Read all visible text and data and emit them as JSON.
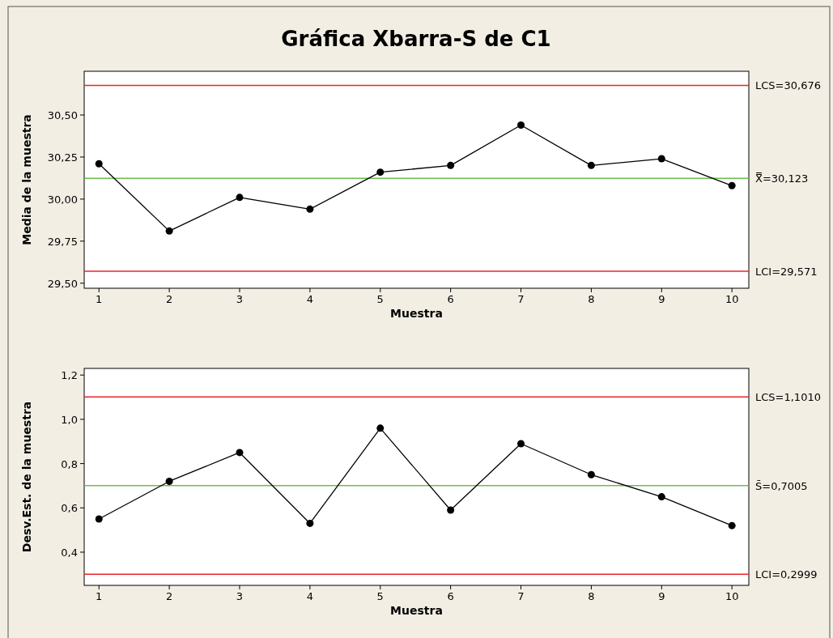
{
  "chart_data": [
    {
      "type": "line",
      "title": "Gráfica Xbarra-S de C1",
      "xlabel": "Muestra",
      "ylabel": "Media de la muestra",
      "x": [
        1,
        2,
        3,
        4,
        5,
        6,
        7,
        8,
        9,
        10
      ],
      "series": [
        {
          "color": "#000000",
          "values": [
            30.21,
            29.81,
            30.01,
            29.94,
            30.16,
            30.2,
            30.44,
            30.2,
            30.24,
            30.08
          ]
        }
      ],
      "marker": "circle",
      "xlim": [
        0.79,
        10.24
      ],
      "xticks": [
        1,
        2,
        3,
        4,
        5,
        6,
        7,
        8,
        9,
        10
      ],
      "ylim": [
        29.47,
        30.76
      ],
      "yticks": [
        {
          "value": 29.5,
          "label": "29,50"
        },
        {
          "value": 29.75,
          "label": "29,75"
        },
        {
          "value": 30,
          "label": "30,00"
        },
        {
          "value": 30.25,
          "label": "30,25"
        },
        {
          "value": 30.5,
          "label": "30,50"
        }
      ],
      "ref_lines": [
        {
          "axis": "y",
          "value": 30.676,
          "label": "LCS=30,676",
          "color": "#e8242a"
        },
        {
          "axis": "y",
          "value": 30.123,
          "label": "X̿=30,123",
          "color": "#6abf4b"
        },
        {
          "axis": "y",
          "value": 29.571,
          "label": "LCI=29,571",
          "color": "#e8242a"
        }
      ]
    },
    {
      "type": "line",
      "xlabel": "Muestra",
      "ylabel": "Desv.Est. de la muestra",
      "x": [
        1,
        2,
        3,
        4,
        5,
        6,
        7,
        8,
        9,
        10
      ],
      "series": [
        {
          "color": "#000000",
          "values": [
            0.55,
            0.72,
            0.85,
            0.53,
            0.96,
            0.59,
            0.89,
            0.75,
            0.65,
            0.52
          ]
        }
      ],
      "marker": "circle",
      "xlim": [
        0.79,
        10.24
      ],
      "xticks": [
        1,
        2,
        3,
        4,
        5,
        6,
        7,
        8,
        9,
        10
      ],
      "ylim": [
        0.25,
        1.23
      ],
      "yticks": [
        {
          "value": 0.4,
          "label": "0,4"
        },
        {
          "value": 0.6,
          "label": "0,6"
        },
        {
          "value": 0.8,
          "label": "0,8"
        },
        {
          "value": 1.0,
          "label": "1,0"
        },
        {
          "value": 1.2,
          "label": "1,2"
        }
      ],
      "ref_lines": [
        {
          "axis": "y",
          "value": 1.101,
          "label": "LCS=1,1010",
          "color": "#e8242a"
        },
        {
          "axis": "y",
          "value": 0.7005,
          "label": "S̄=0,7005",
          "color": "#6abf4b"
        },
        {
          "axis": "y",
          "value": 0.2999,
          "label": "LCI=0,2999",
          "color": "#e8242a"
        }
      ]
    }
  ]
}
